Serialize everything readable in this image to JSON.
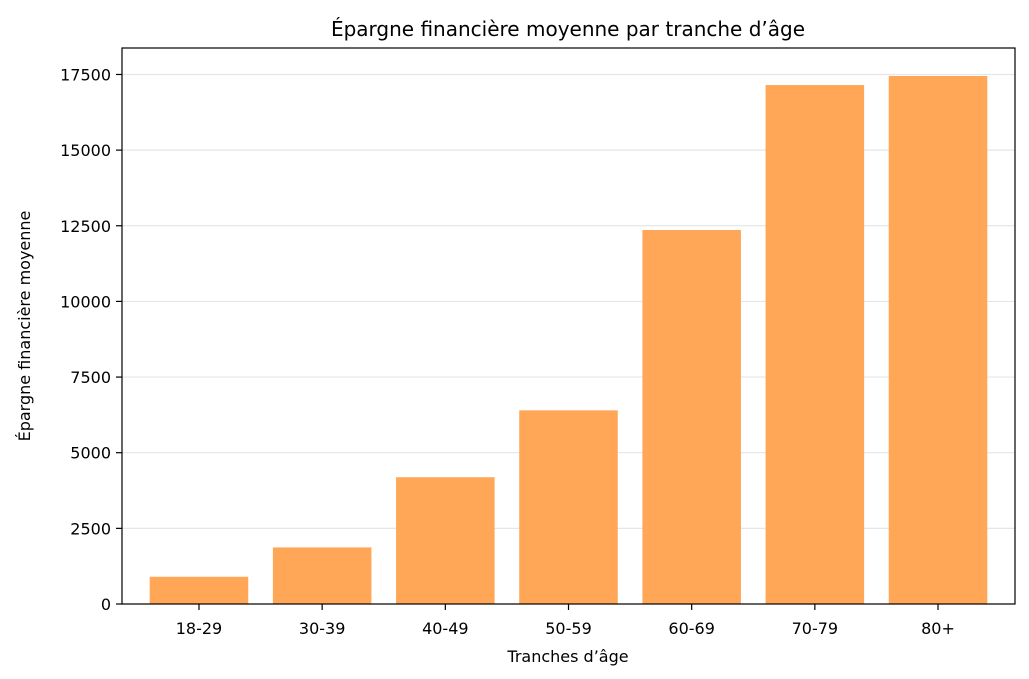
{
  "chart_data": {
    "type": "bar",
    "title": "Épargne financière moyenne par tranche d’âge",
    "xlabel": "Tranches d’âge",
    "ylabel": "Épargne financière moyenne",
    "categories": [
      "18-29",
      "30-39",
      "40-49",
      "50-59",
      "60-69",
      "70-79",
      "80+"
    ],
    "values": [
      900,
      1870,
      4190,
      6400,
      12360,
      17150,
      17450
    ],
    "ylim": [
      0,
      18375
    ],
    "yticks": [
      0,
      2500,
      5000,
      7500,
      10000,
      12500,
      15000,
      17500
    ],
    "grid": "horizontal",
    "bar_color": "#ffa657"
  }
}
